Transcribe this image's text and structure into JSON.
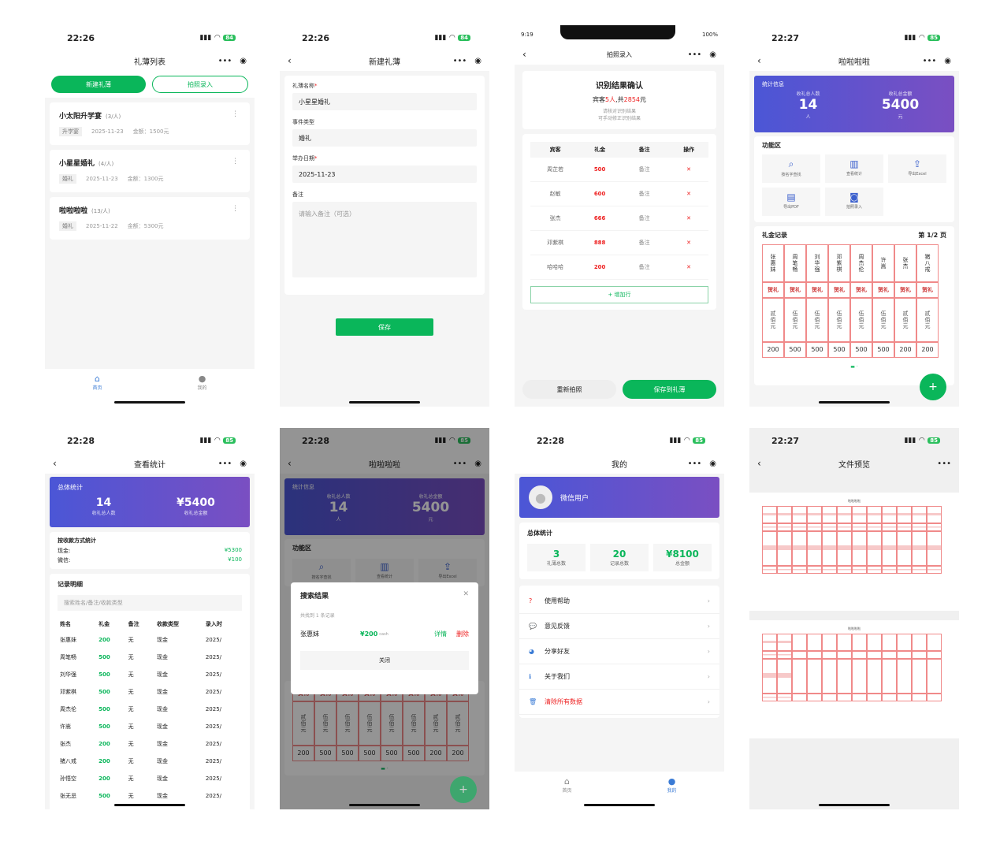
{
  "status": {
    "t1": "22:26",
    "t2": "22:26",
    "t3": "9:19",
    "t4": "22:27",
    "t5": "22:28",
    "t6": "22:28",
    "t7": "22:28",
    "t8": "22:27",
    "b1": "84",
    "b2": "84",
    "b3": "100%",
    "b4": "85",
    "b5": "85",
    "b6": "85",
    "b7": "85",
    "b8": "85"
  },
  "s1": {
    "title": "礼薄列表",
    "new_btn": "新建礼薄",
    "photo_btn": "拍照录入",
    "items": [
      {
        "name": "小太阳升学宴",
        "count": "(3/人)",
        "type": "升学宴",
        "date": "2025-11-23",
        "amount": "金额：1500元"
      },
      {
        "name": "小星星婚礼",
        "count": "(4/人)",
        "type": "婚礼",
        "date": "2025-11-23",
        "amount": "金额：1300元"
      },
      {
        "name": "啦啦啦啦",
        "count": "(13/人)",
        "type": "婚礼",
        "date": "2025-11-22",
        "amount": "金额：5300元"
      }
    ],
    "tab_home": "首页",
    "tab_me": "我的"
  },
  "s2": {
    "title": "新建礼薄",
    "name_label": "礼薄名称",
    "name_value": "小星星婚礼",
    "type_label": "事件类型",
    "type_value": "婚礼",
    "date_label": "举办日期",
    "date_value": "2025-11-23",
    "note_label": "备注",
    "note_ph": "请输入备注（可选）",
    "save": "保存"
  },
  "s3": {
    "title": "拍照录入",
    "head": "识别结果确认",
    "sub_pre": "宾客",
    "sub_n": "5人",
    "sub_mid": ",共",
    "sub_amt": "2854",
    "sub_suf": "元",
    "hint1": "请核对识别结果",
    "hint2": "可手动修正识别结果",
    "cols": [
      "宾客",
      "礼金",
      "备注",
      "操作"
    ],
    "rows": [
      {
        "n": "周芷若",
        "a": "500",
        "r": "备注"
      },
      {
        "n": "赵敏",
        "a": "600",
        "r": "备注"
      },
      {
        "n": "张杰",
        "a": "666",
        "r": "备注"
      },
      {
        "n": "邓紫棋",
        "a": "888",
        "r": "备注"
      },
      {
        "n": "哈哈哈",
        "a": "200",
        "r": "备注"
      }
    ],
    "add": "+ 增加行",
    "retake": "重新拍照",
    "savebook": "保存到礼薄"
  },
  "s4": {
    "title": "啦啦啦啦",
    "stat": "统计信息",
    "p_label": "收礼总人数",
    "p_val": "14",
    "p_unit": "人",
    "m_label": "收礼总金额",
    "m_val": "5400",
    "m_unit": "元",
    "func": "功能区",
    "f": [
      "按名字查找",
      "查看统计",
      "导出Excel",
      "导出PDF",
      "拍照录入"
    ],
    "rec": "礼金记录",
    "page": "第 1/2 页",
    "names": [
      "张惠妹",
      "周笔畅",
      "刘华强",
      "邓紫棋",
      "周杰伦",
      "许嵩",
      "张杰",
      "猪八戒"
    ],
    "tag": "贺礼",
    "cn": [
      "贰佰元",
      "伍佰元",
      "伍佰元",
      "伍佰元",
      "伍佰元",
      "伍佰元",
      "贰佰元",
      "贰佰元"
    ],
    "nums": [
      "200",
      "500",
      "500",
      "500",
      "500",
      "500",
      "200",
      "200"
    ],
    "fab": "+"
  },
  "s5": {
    "title": "查看统计",
    "total": "总体统计",
    "p_val": "14",
    "p_label": "收礼总人数",
    "m_val": "¥5400",
    "m_label": "收礼总金额",
    "by": "按收款方式统计",
    "cash": "现金:",
    "cash_v": "¥5300",
    "wx": "微信:",
    "wx_v": "¥100",
    "detail": "记录明细",
    "search_ph": "搜索姓名/备注/收款类型",
    "cols": [
      "姓名",
      "礼金",
      "备注",
      "收款类型",
      "录入时"
    ],
    "rows": [
      [
        "张惠妹",
        "200",
        "无",
        "现金",
        "2025/"
      ],
      [
        "周笔畅",
        "500",
        "无",
        "现金",
        "2025/"
      ],
      [
        "刘华强",
        "500",
        "无",
        "现金",
        "2025/"
      ],
      [
        "邓紫棋",
        "500",
        "无",
        "现金",
        "2025/"
      ],
      [
        "周杰伦",
        "500",
        "无",
        "现金",
        "2025/"
      ],
      [
        "许嵩",
        "500",
        "无",
        "现金",
        "2025/"
      ],
      [
        "张杰",
        "200",
        "无",
        "现金",
        "2025/"
      ],
      [
        "猪八戒",
        "200",
        "无",
        "现金",
        "2025/"
      ],
      [
        "孙悟空",
        "200",
        "无",
        "现金",
        "2025/"
      ],
      [
        "张无忌",
        "500",
        "无",
        "现金",
        "2025/"
      ]
    ]
  },
  "s6": {
    "title": "啦啦啦啦",
    "stat": "统计信息",
    "p_label": "收礼总人数",
    "p_val": "14",
    "p_unit": "人",
    "m_label": "收礼总金额",
    "m_val": "5400",
    "m_unit": "元",
    "func": "功能区",
    "f": [
      "按名字查找",
      "查看统计",
      "导出Excel"
    ],
    "modal_title": "搜索结果",
    "found": "共找到 1 条记录",
    "r_name": "张惠妹",
    "r_amt": "¥200",
    "r_type": "cash",
    "r_detail": "详情",
    "r_del": "删除",
    "close": "关闭",
    "tag": "贺礼",
    "cn": [
      "贰佰元",
      "伍佰元",
      "伍佰元",
      "伍佰元",
      "伍佰元",
      "伍佰元",
      "贰佰元",
      "贰佰元"
    ],
    "nums": [
      "200",
      "500",
      "500",
      "500",
      "500",
      "500",
      "200",
      "200"
    ],
    "fab": "+"
  },
  "s7": {
    "title": "我的",
    "user": "微信用户",
    "total": "总体统计",
    "books": "3",
    "books_l": "礼薄总数",
    "recs": "20",
    "recs_l": "记录总数",
    "amt": "¥8100",
    "amt_l": "总金额",
    "menu": [
      "使用帮助",
      "意见反馈",
      "分享好友",
      "关于我们",
      "清除所有数据"
    ],
    "tab_home": "首页",
    "tab_me": "我的"
  },
  "s8": {
    "title": "文件预览",
    "sheet": "啦啦啦啦"
  }
}
